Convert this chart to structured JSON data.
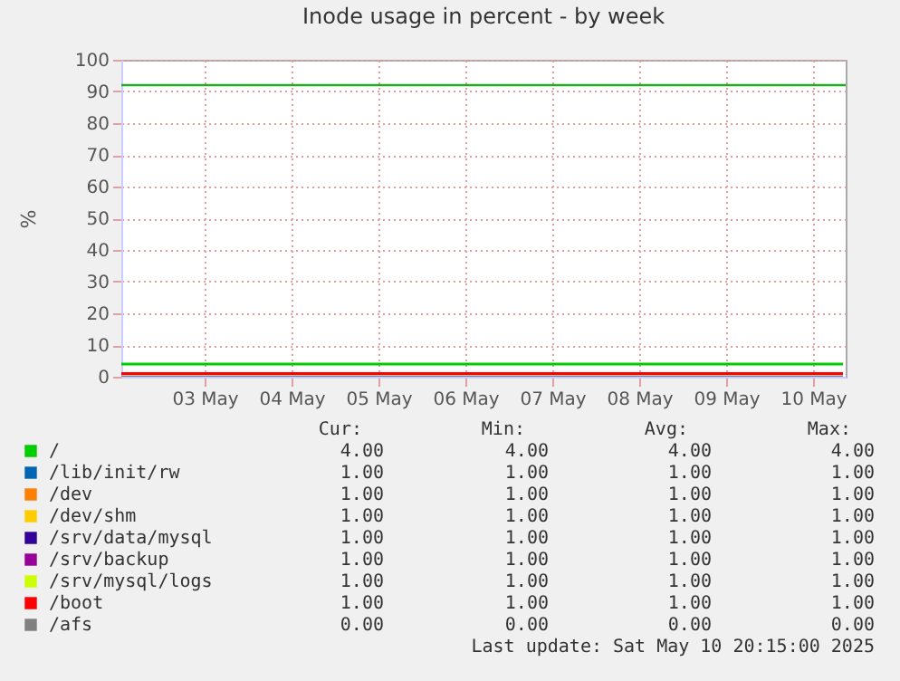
{
  "chart_data": {
    "type": "line",
    "title": "Inode usage in percent - by week",
    "ylabel": "%",
    "x": [
      "2025-05-02T13:00",
      "2025-05-10T20:15"
    ],
    "xlim": [
      "2025-05-02T13:00",
      "2025-05-10T21:00"
    ],
    "xticks": [
      {
        "value": "2025-05-03T12:00",
        "label": "03 May"
      },
      {
        "value": "2025-05-04T12:00",
        "label": "04 May"
      },
      {
        "value": "2025-05-05T12:00",
        "label": "05 May"
      },
      {
        "value": "2025-05-06T12:00",
        "label": "06 May"
      },
      {
        "value": "2025-05-07T12:00",
        "label": "07 May"
      },
      {
        "value": "2025-05-08T12:00",
        "label": "08 May"
      },
      {
        "value": "2025-05-09T12:00",
        "label": "09 May"
      },
      {
        "value": "2025-05-10T12:00",
        "label": "10 May"
      }
    ],
    "ylim": [
      0,
      100
    ],
    "yticks": [
      0,
      10,
      20,
      30,
      40,
      50,
      60,
      70,
      80,
      90,
      100
    ],
    "grid": true,
    "legend": "bottom",
    "series": [
      {
        "name": "/",
        "color": "#00cc00",
        "values": [
          4.0,
          4.0
        ]
      },
      {
        "name": "/lib/init/rw",
        "color": "#0066b3",
        "values": [
          null,
          null
        ]
      },
      {
        "name": "/dev",
        "color": "#ff8000",
        "values": [
          null,
          null
        ]
      },
      {
        "name": "/dev/shm",
        "color": "#ffcc00",
        "values": [
          null,
          null
        ]
      },
      {
        "name": "/srv/data/mysql",
        "color": "#330099",
        "values": [
          null,
          null
        ]
      },
      {
        "name": "/srv/backup",
        "color": "#990099",
        "values": [
          null,
          null
        ]
      },
      {
        "name": "/srv/mysql/logs",
        "color": "#ccff00",
        "values": [
          null,
          null
        ]
      },
      {
        "name": "/boot",
        "color": "#ff0000",
        "values": [
          1.0,
          1.0
        ]
      },
      {
        "name": "/afs",
        "color": "#808080",
        "values": [
          0.0,
          0.0
        ]
      }
    ],
    "ref_lines": [
      {
        "axis": "y",
        "value": 92,
        "color": "#22aa22"
      }
    ],
    "annotations": [
      "Cur:",
      "Min:",
      "Avg:",
      "Max:",
      "4.00",
      "4.00",
      "4.00",
      "4.00",
      "1.00",
      "1.00",
      "1.00",
      "1.00",
      "1.00",
      "1.00",
      "1.00",
      "1.00",
      "1.00",
      "1.00",
      "1.00",
      "1.00",
      "1.00",
      "1.00",
      "1.00",
      "1.00",
      "1.00",
      "1.00",
      "1.00",
      "1.00",
      "1.00",
      "1.00",
      "1.00",
      "1.00",
      "1.00",
      "1.00",
      "1.00",
      "1.00",
      "0.00",
      "0.00",
      "0.00",
      "0.00",
      "Last update:  Sat May 10 20:15:00 2025"
    ]
  }
}
